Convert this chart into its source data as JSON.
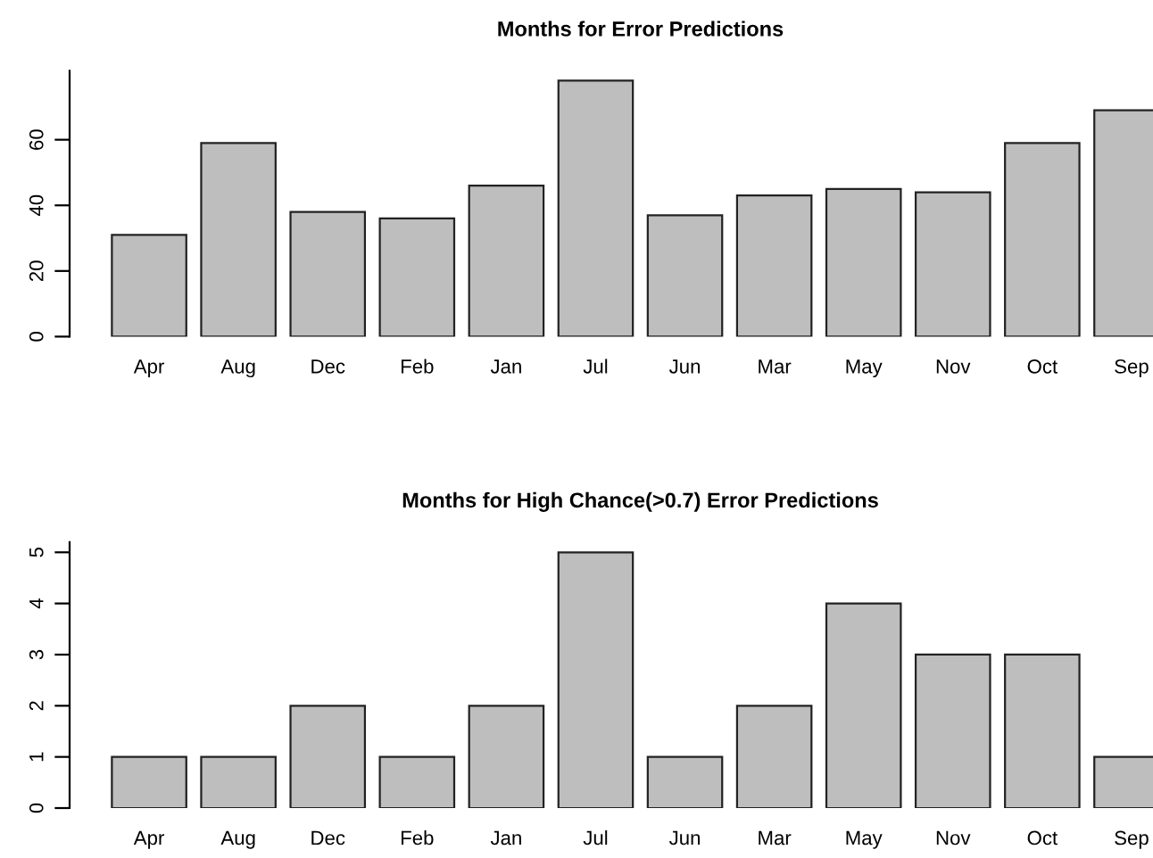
{
  "chart_data": [
    {
      "type": "bar",
      "title": "Months for Error Predictions",
      "categories": [
        "Apr",
        "Aug",
        "Dec",
        "Feb",
        "Jan",
        "Jul",
        "Jun",
        "Mar",
        "May",
        "Nov",
        "Oct",
        "Sep"
      ],
      "values": [
        31,
        59,
        38,
        36,
        46,
        78,
        37,
        43,
        45,
        44,
        59,
        69
      ],
      "color": "#bebebe",
      "ylim": [
        0,
        81
      ],
      "yticks": [
        0,
        20,
        40,
        60
      ]
    },
    {
      "type": "bar",
      "title": "Months for High Chance(>0.7) Error Predictions",
      "categories": [
        "Apr",
        "Aug",
        "Dec",
        "Feb",
        "Jan",
        "Jul",
        "Jun",
        "Mar",
        "May",
        "Nov",
        "Oct",
        "Sep"
      ],
      "values": [
        1,
        1,
        2,
        1,
        2,
        5,
        1,
        2,
        4,
        3,
        3,
        1
      ],
      "color": "#bebebe",
      "ylim": [
        0,
        5.2
      ],
      "yticks": [
        0,
        1,
        2,
        3,
        4,
        5
      ]
    }
  ]
}
